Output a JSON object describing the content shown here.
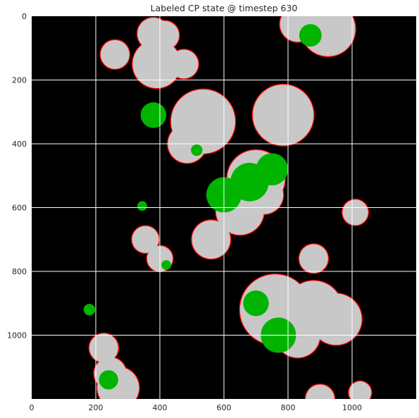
{
  "chart_data": {
    "type": "heatmap",
    "title": "Labeled CP state @ timestep 630",
    "xlabel": "",
    "ylabel": "",
    "xlim": [
      0,
      1200
    ],
    "ylim": [
      1200,
      0
    ],
    "xticks": [
      0,
      200,
      400,
      600,
      800,
      1000
    ],
    "yticks": [
      0,
      200,
      400,
      600,
      800,
      1000
    ],
    "grid": true,
    "colors": {
      "background": "#000000",
      "interior": "#c8c8c8",
      "active": "#00b400",
      "boundary": "#ff0000",
      "grid": "#ffffff"
    },
    "regions": [
      {
        "cx": 260,
        "cy": 120,
        "r": 45
      },
      {
        "cx": 380,
        "cy": 55,
        "r": 50
      },
      {
        "cx": 415,
        "cy": 60,
        "r": 45
      },
      {
        "cx": 390,
        "cy": 150,
        "r": 75
      },
      {
        "cx": 475,
        "cy": 150,
        "r": 45
      },
      {
        "cx": 830,
        "cy": 25,
        "r": 55
      },
      {
        "cx": 925,
        "cy": 40,
        "r": 85
      },
      {
        "cx": 785,
        "cy": 310,
        "r": 95
      },
      {
        "cx": 535,
        "cy": 330,
        "r": 100
      },
      {
        "cx": 485,
        "cy": 400,
        "r": 60
      },
      {
        "cx": 700,
        "cy": 510,
        "r": 90
      },
      {
        "cx": 650,
        "cy": 610,
        "r": 75
      },
      {
        "cx": 725,
        "cy": 560,
        "r": 60
      },
      {
        "cx": 560,
        "cy": 700,
        "r": 60
      },
      {
        "cx": 1010,
        "cy": 615,
        "r": 40
      },
      {
        "cx": 355,
        "cy": 700,
        "r": 42
      },
      {
        "cx": 400,
        "cy": 760,
        "r": 40
      },
      {
        "cx": 880,
        "cy": 760,
        "r": 45
      },
      {
        "cx": 760,
        "cy": 920,
        "r": 110
      },
      {
        "cx": 880,
        "cy": 920,
        "r": 90
      },
      {
        "cx": 950,
        "cy": 950,
        "r": 80
      },
      {
        "cx": 830,
        "cy": 1000,
        "r": 70
      },
      {
        "cx": 225,
        "cy": 1040,
        "r": 45
      },
      {
        "cx": 245,
        "cy": 1120,
        "r": 50
      },
      {
        "cx": 270,
        "cy": 1165,
        "r": 65
      },
      {
        "cx": 1025,
        "cy": 1180,
        "r": 35
      },
      {
        "cx": 900,
        "cy": 1200,
        "r": 45
      }
    ],
    "active_spots": [
      {
        "cx": 380,
        "cy": 310,
        "r": 40
      },
      {
        "cx": 600,
        "cy": 560,
        "r": 55
      },
      {
        "cx": 680,
        "cy": 520,
        "r": 60
      },
      {
        "cx": 750,
        "cy": 480,
        "r": 50
      },
      {
        "cx": 770,
        "cy": 1000,
        "r": 55
      },
      {
        "cx": 700,
        "cy": 900,
        "r": 40
      },
      {
        "cx": 870,
        "cy": 60,
        "r": 35
      },
      {
        "cx": 240,
        "cy": 1140,
        "r": 30
      },
      {
        "cx": 345,
        "cy": 595,
        "r": 15
      },
      {
        "cx": 515,
        "cy": 420,
        "r": 18
      },
      {
        "cx": 180,
        "cy": 920,
        "r": 18
      },
      {
        "cx": 420,
        "cy": 780,
        "r": 15
      }
    ]
  }
}
